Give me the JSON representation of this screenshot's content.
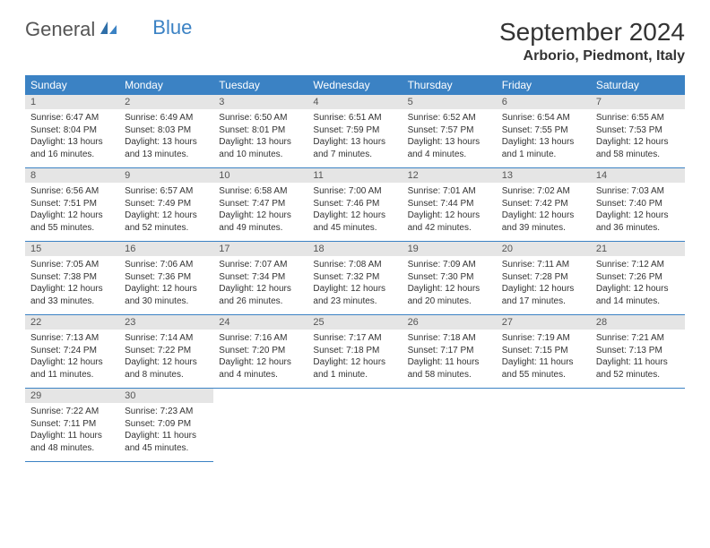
{
  "brand": {
    "part1": "General",
    "part2": "Blue"
  },
  "title": "September 2024",
  "location": "Arborio, Piedmont, Italy",
  "colors": {
    "header_bg": "#3b82c4",
    "header_text": "#ffffff",
    "daynum_bg": "#e5e5e5",
    "border": "#3b82c4",
    "body_text": "#333333",
    "page_bg": "#ffffff"
  },
  "typography": {
    "title_fontsize": 28,
    "location_fontsize": 16,
    "dayhead_fontsize": 12,
    "daynum_fontsize": 11,
    "cell_fontsize": 10
  },
  "day_headers": [
    "Sunday",
    "Monday",
    "Tuesday",
    "Wednesday",
    "Thursday",
    "Friday",
    "Saturday"
  ],
  "weeks": [
    [
      {
        "n": "1",
        "sunrise": "Sunrise: 6:47 AM",
        "sunset": "Sunset: 8:04 PM",
        "daylight": "Daylight: 13 hours and 16 minutes."
      },
      {
        "n": "2",
        "sunrise": "Sunrise: 6:49 AM",
        "sunset": "Sunset: 8:03 PM",
        "daylight": "Daylight: 13 hours and 13 minutes."
      },
      {
        "n": "3",
        "sunrise": "Sunrise: 6:50 AM",
        "sunset": "Sunset: 8:01 PM",
        "daylight": "Daylight: 13 hours and 10 minutes."
      },
      {
        "n": "4",
        "sunrise": "Sunrise: 6:51 AM",
        "sunset": "Sunset: 7:59 PM",
        "daylight": "Daylight: 13 hours and 7 minutes."
      },
      {
        "n": "5",
        "sunrise": "Sunrise: 6:52 AM",
        "sunset": "Sunset: 7:57 PM",
        "daylight": "Daylight: 13 hours and 4 minutes."
      },
      {
        "n": "6",
        "sunrise": "Sunrise: 6:54 AM",
        "sunset": "Sunset: 7:55 PM",
        "daylight": "Daylight: 13 hours and 1 minute."
      },
      {
        "n": "7",
        "sunrise": "Sunrise: 6:55 AM",
        "sunset": "Sunset: 7:53 PM",
        "daylight": "Daylight: 12 hours and 58 minutes."
      }
    ],
    [
      {
        "n": "8",
        "sunrise": "Sunrise: 6:56 AM",
        "sunset": "Sunset: 7:51 PM",
        "daylight": "Daylight: 12 hours and 55 minutes."
      },
      {
        "n": "9",
        "sunrise": "Sunrise: 6:57 AM",
        "sunset": "Sunset: 7:49 PM",
        "daylight": "Daylight: 12 hours and 52 minutes."
      },
      {
        "n": "10",
        "sunrise": "Sunrise: 6:58 AM",
        "sunset": "Sunset: 7:47 PM",
        "daylight": "Daylight: 12 hours and 49 minutes."
      },
      {
        "n": "11",
        "sunrise": "Sunrise: 7:00 AM",
        "sunset": "Sunset: 7:46 PM",
        "daylight": "Daylight: 12 hours and 45 minutes."
      },
      {
        "n": "12",
        "sunrise": "Sunrise: 7:01 AM",
        "sunset": "Sunset: 7:44 PM",
        "daylight": "Daylight: 12 hours and 42 minutes."
      },
      {
        "n": "13",
        "sunrise": "Sunrise: 7:02 AM",
        "sunset": "Sunset: 7:42 PM",
        "daylight": "Daylight: 12 hours and 39 minutes."
      },
      {
        "n": "14",
        "sunrise": "Sunrise: 7:03 AM",
        "sunset": "Sunset: 7:40 PM",
        "daylight": "Daylight: 12 hours and 36 minutes."
      }
    ],
    [
      {
        "n": "15",
        "sunrise": "Sunrise: 7:05 AM",
        "sunset": "Sunset: 7:38 PM",
        "daylight": "Daylight: 12 hours and 33 minutes."
      },
      {
        "n": "16",
        "sunrise": "Sunrise: 7:06 AM",
        "sunset": "Sunset: 7:36 PM",
        "daylight": "Daylight: 12 hours and 30 minutes."
      },
      {
        "n": "17",
        "sunrise": "Sunrise: 7:07 AM",
        "sunset": "Sunset: 7:34 PM",
        "daylight": "Daylight: 12 hours and 26 minutes."
      },
      {
        "n": "18",
        "sunrise": "Sunrise: 7:08 AM",
        "sunset": "Sunset: 7:32 PM",
        "daylight": "Daylight: 12 hours and 23 minutes."
      },
      {
        "n": "19",
        "sunrise": "Sunrise: 7:09 AM",
        "sunset": "Sunset: 7:30 PM",
        "daylight": "Daylight: 12 hours and 20 minutes."
      },
      {
        "n": "20",
        "sunrise": "Sunrise: 7:11 AM",
        "sunset": "Sunset: 7:28 PM",
        "daylight": "Daylight: 12 hours and 17 minutes."
      },
      {
        "n": "21",
        "sunrise": "Sunrise: 7:12 AM",
        "sunset": "Sunset: 7:26 PM",
        "daylight": "Daylight: 12 hours and 14 minutes."
      }
    ],
    [
      {
        "n": "22",
        "sunrise": "Sunrise: 7:13 AM",
        "sunset": "Sunset: 7:24 PM",
        "daylight": "Daylight: 12 hours and 11 minutes."
      },
      {
        "n": "23",
        "sunrise": "Sunrise: 7:14 AM",
        "sunset": "Sunset: 7:22 PM",
        "daylight": "Daylight: 12 hours and 8 minutes."
      },
      {
        "n": "24",
        "sunrise": "Sunrise: 7:16 AM",
        "sunset": "Sunset: 7:20 PM",
        "daylight": "Daylight: 12 hours and 4 minutes."
      },
      {
        "n": "25",
        "sunrise": "Sunrise: 7:17 AM",
        "sunset": "Sunset: 7:18 PM",
        "daylight": "Daylight: 12 hours and 1 minute."
      },
      {
        "n": "26",
        "sunrise": "Sunrise: 7:18 AM",
        "sunset": "Sunset: 7:17 PM",
        "daylight": "Daylight: 11 hours and 58 minutes."
      },
      {
        "n": "27",
        "sunrise": "Sunrise: 7:19 AM",
        "sunset": "Sunset: 7:15 PM",
        "daylight": "Daylight: 11 hours and 55 minutes."
      },
      {
        "n": "28",
        "sunrise": "Sunrise: 7:21 AM",
        "sunset": "Sunset: 7:13 PM",
        "daylight": "Daylight: 11 hours and 52 minutes."
      }
    ],
    [
      {
        "n": "29",
        "sunrise": "Sunrise: 7:22 AM",
        "sunset": "Sunset: 7:11 PM",
        "daylight": "Daylight: 11 hours and 48 minutes."
      },
      {
        "n": "30",
        "sunrise": "Sunrise: 7:23 AM",
        "sunset": "Sunset: 7:09 PM",
        "daylight": "Daylight: 11 hours and 45 minutes."
      },
      null,
      null,
      null,
      null,
      null
    ]
  ]
}
